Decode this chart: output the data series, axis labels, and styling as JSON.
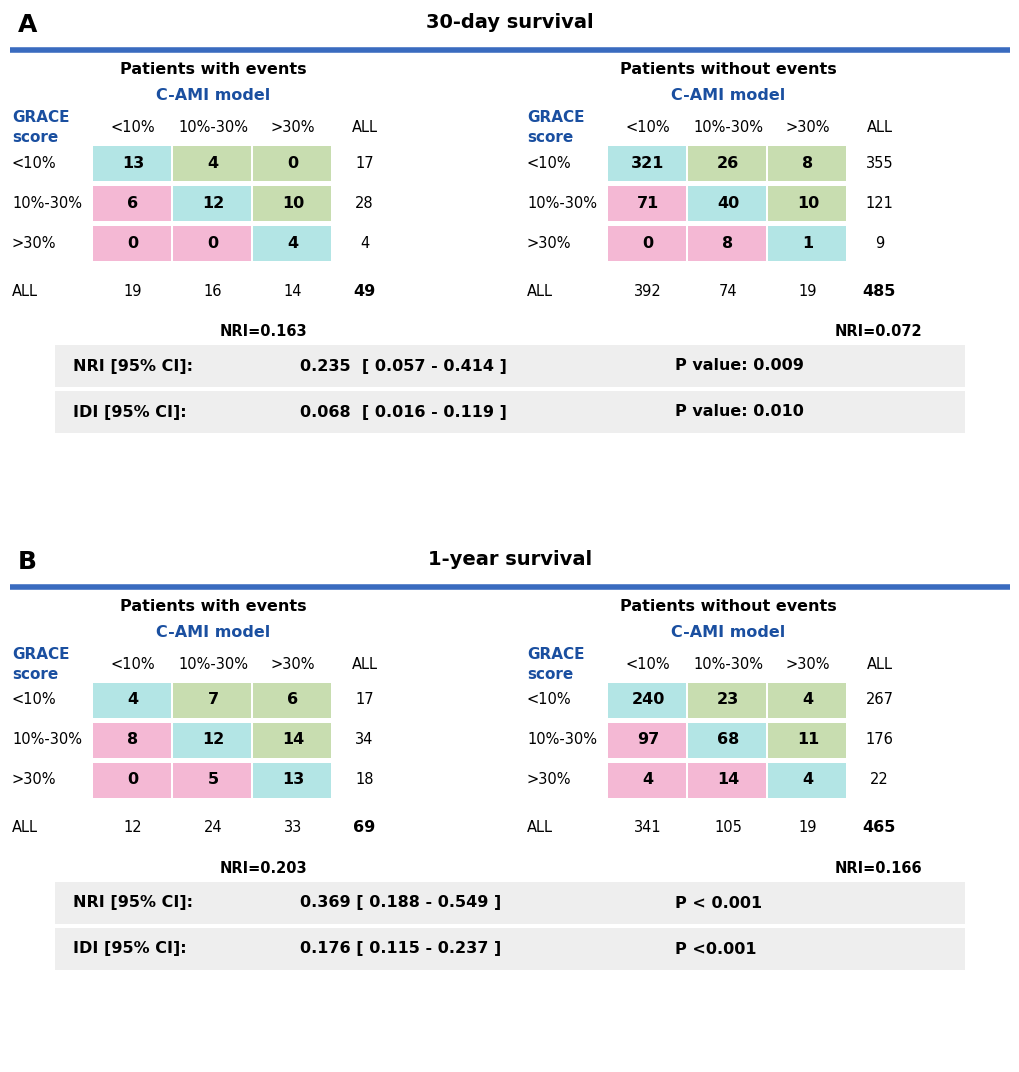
{
  "panel_A": {
    "title": "30-day survival",
    "label": "A",
    "with_events": {
      "header": "Patients with events",
      "cami_label": "C-AMI model",
      "grace_label": "GRACE\nscore",
      "col_headers": [
        "<10%",
        "10%-30%",
        ">30%",
        "ALL"
      ],
      "row_headers": [
        "<10%",
        "10%-30%",
        ">30%",
        "ALL"
      ],
      "data": [
        [
          13,
          4,
          0,
          17
        ],
        [
          6,
          12,
          10,
          28
        ],
        [
          0,
          0,
          4,
          4
        ],
        [
          19,
          16,
          14,
          49
        ]
      ],
      "nri": "NRI=0.163"
    },
    "without_events": {
      "header": "Patients without events",
      "cami_label": "C-AMI model",
      "grace_label": "GRACE\nscore",
      "col_headers": [
        "<10%",
        "10%-30%",
        ">30%",
        "ALL"
      ],
      "row_headers": [
        "<10%",
        "10%-30%",
        ">30%",
        "ALL"
      ],
      "data": [
        [
          321,
          26,
          8,
          355
        ],
        [
          71,
          40,
          10,
          121
        ],
        [
          0,
          8,
          1,
          9
        ],
        [
          392,
          74,
          19,
          485
        ]
      ],
      "nri": "NRI=0.072"
    },
    "nri_row": [
      "NRI [95% CI]:",
      "0.235  [ 0.057 - 0.414 ]",
      "P value: 0.009"
    ],
    "idi_row": [
      "IDI [95% CI]:",
      "0.068  [ 0.016 - 0.119 ]",
      "P value: 0.010"
    ]
  },
  "panel_B": {
    "title": "1-year survival",
    "label": "B",
    "with_events": {
      "header": "Patients with events",
      "cami_label": "C-AMI model",
      "grace_label": "GRACE\nscore",
      "col_headers": [
        "<10%",
        "10%-30%",
        ">30%",
        "ALL"
      ],
      "row_headers": [
        "<10%",
        "10%-30%",
        ">30%",
        "ALL"
      ],
      "data": [
        [
          4,
          7,
          6,
          17
        ],
        [
          8,
          12,
          14,
          34
        ],
        [
          0,
          5,
          13,
          18
        ],
        [
          12,
          24,
          33,
          69
        ]
      ],
      "nri": "NRI=0.203"
    },
    "without_events": {
      "header": "Patients without events",
      "cami_label": "C-AMI model",
      "grace_label": "GRACE\nscore",
      "col_headers": [
        "<10%",
        "10%-30%",
        ">30%",
        "ALL"
      ],
      "row_headers": [
        "<10%",
        "10%-30%",
        ">30%",
        "ALL"
      ],
      "data": [
        [
          240,
          23,
          4,
          267
        ],
        [
          97,
          68,
          11,
          176
        ],
        [
          4,
          14,
          4,
          22
        ],
        [
          341,
          105,
          19,
          465
        ]
      ],
      "nri": "NRI=0.166"
    },
    "nri_row": [
      "NRI [95% CI]:",
      "0.369 [ 0.188 - 0.549 ]",
      "P < 0.001"
    ],
    "idi_row": [
      "IDI [95% CI]:",
      "0.176 [ 0.115 - 0.237 ]",
      "P <0.001"
    ]
  },
  "colors": {
    "cyan": "#b3e5e5",
    "green": "#c8ddb0",
    "pink": "#f4b8d4",
    "blue_header": "#1a4fa0",
    "blue_line": "#3a6bbf",
    "gray_bg": "#eeeeee",
    "white": "#ffffff",
    "black": "#000000",
    "grace_blue": "#1a4fa0"
  },
  "layout": {
    "fig_w": 10.2,
    "fig_h": 10.72,
    "dpi": 100
  }
}
